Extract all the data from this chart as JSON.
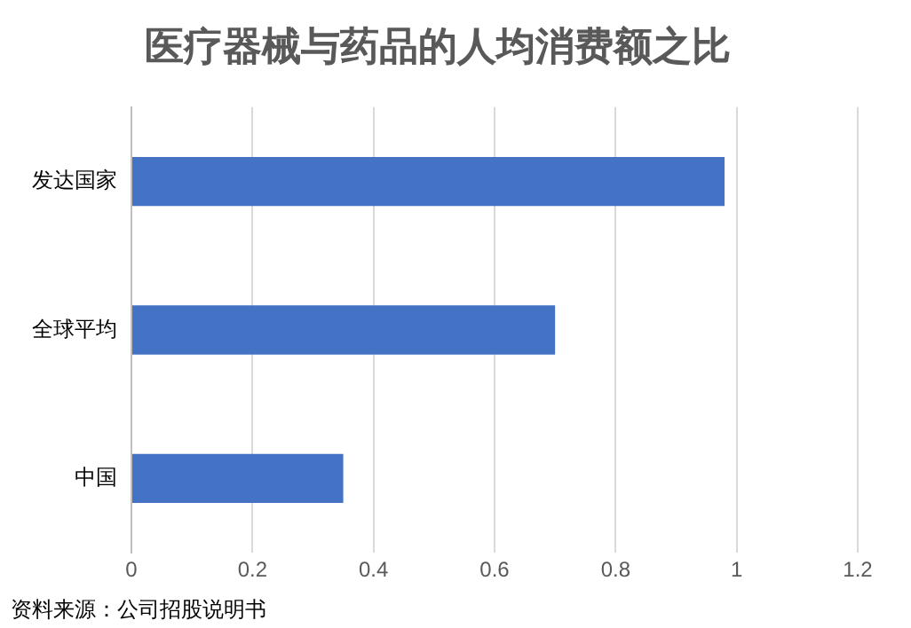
{
  "chart_data": {
    "type": "bar",
    "orientation": "horizontal",
    "title": "医疗器械与药品的人均消费额之比",
    "categories": [
      "发达国家",
      "全球平均",
      "中国"
    ],
    "values": [
      0.98,
      0.7,
      0.35
    ],
    "color": "#4472c4",
    "xlim": [
      0,
      1.2
    ],
    "xticks": [
      0,
      0.2,
      0.4,
      0.6,
      0.8,
      1,
      1.2
    ],
    "grid": "x",
    "annotations": [
      "资料来源：公司招股说明书"
    ]
  }
}
